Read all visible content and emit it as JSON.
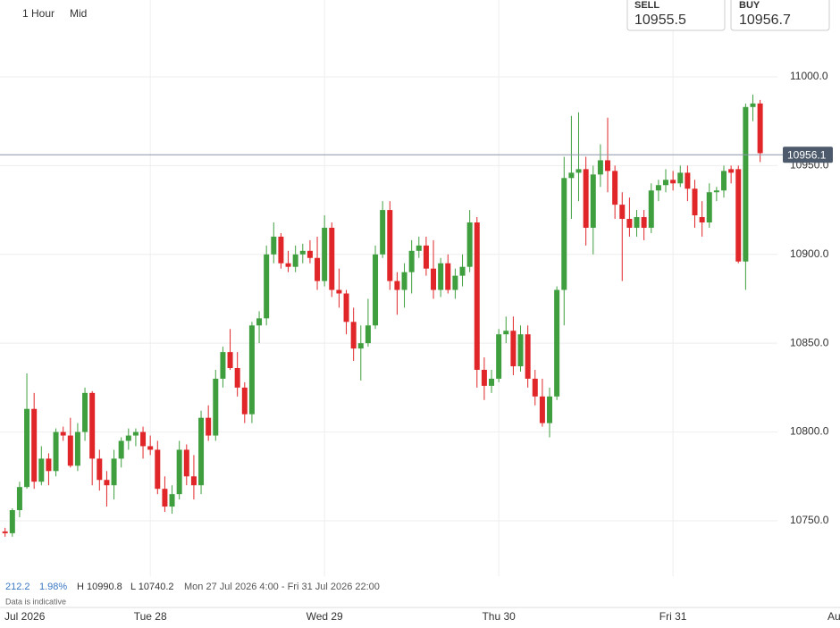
{
  "header": {
    "timeframe": "1 Hour",
    "price_type": "Mid",
    "sell_label": "SELL",
    "sell_price": "10955.5",
    "buy_label": "BUY",
    "buy_price": "10956.7"
  },
  "stats": {
    "change": "212.2",
    "change_pct": "1.98%",
    "high": "H 10990.8",
    "low": "L 10740.2",
    "range": "Mon 27 Jul 2026 4:00 - Fri 31 Jul 2026 22:00",
    "note": "Data is indicative"
  },
  "chart_data": {
    "type": "candlestick",
    "x": [
      4,
      5,
      6,
      7,
      8,
      9,
      10,
      11,
      12,
      13,
      14,
      15,
      16,
      17,
      18,
      19,
      20,
      21,
      22,
      23,
      24,
      25,
      26,
      27,
      28,
      29,
      30,
      31,
      32,
      33,
      34,
      35,
      36,
      37,
      38,
      39,
      40,
      41,
      42,
      43,
      44,
      45,
      46,
      47,
      48,
      49,
      50,
      51,
      52,
      53,
      54,
      55,
      56,
      57,
      58,
      59,
      60,
      61,
      62,
      63,
      64,
      65,
      66,
      67,
      68,
      69,
      70,
      71,
      72,
      73,
      74,
      75,
      76,
      77,
      78,
      79,
      80,
      81,
      82,
      83,
      84,
      85,
      86,
      87,
      88,
      89,
      90,
      91,
      92,
      93,
      94,
      95,
      96,
      97,
      98,
      99,
      100,
      101,
      102,
      103,
      104,
      105,
      106,
      107,
      108
    ],
    "open": [
      10744,
      10743,
      10756,
      10769,
      10813,
      10772,
      10785,
      10778,
      10800,
      10798,
      10781,
      10800,
      10822,
      10785,
      10773,
      10770,
      10785,
      10795,
      10798,
      10800,
      10792,
      10790,
      10768,
      10758,
      10765,
      10790,
      10775,
      10770,
      10808,
      10798,
      10830,
      10845,
      10836,
      10825,
      10810,
      10860,
      10864,
      10900,
      10910,
      10895,
      10893,
      10900,
      10902,
      10898,
      10885,
      10915,
      10880,
      10878,
      10862,
      10847,
      10850,
      10860,
      10900,
      10925,
      10885,
      10880,
      10890,
      10902,
      10905,
      10892,
      10880,
      10895,
      10880,
      10888,
      10893,
      10918,
      10835,
      10826,
      10830,
      10855,
      10857,
      10837,
      10855,
      10830,
      10820,
      10805,
      10820,
      10880,
      10943,
      10946,
      10948,
      10915,
      10945,
      10953,
      10947,
      10928,
      10920,
      10915,
      10921,
      10915,
      10936,
      10939,
      10942,
      10940,
      10946,
      10937,
      10921,
      10918,
      10935,
      10936,
      10948,
      10948,
      10896,
      10983,
      10985
    ],
    "high": [
      10746,
      10757,
      10772,
      10833,
      10822,
      10792,
      10788,
      10802,
      10803,
      10808,
      10805,
      10825,
      10823,
      10790,
      10778,
      10790,
      10797,
      10802,
      10802,
      10803,
      10798,
      10795,
      10775,
      10770,
      10795,
      10793,
      10787,
      10812,
      10815,
      10835,
      10848,
      10858,
      10845,
      10828,
      10862,
      10868,
      10905,
      10918,
      10912,
      10902,
      10905,
      10906,
      10908,
      10910,
      10922,
      10918,
      10892,
      10880,
      10870,
      10860,
      10875,
      10905,
      10930,
      10930,
      10890,
      10895,
      10908,
      10910,
      10910,
      10908,
      10898,
      10900,
      10892,
      10900,
      10925,
      10921,
      10842,
      10835,
      10858,
      10865,
      10865,
      10860,
      10860,
      10835,
      10830,
      10825,
      10882,
      10955,
      10978,
      10980,
      10955,
      10950,
      10962,
      10977,
      10950,
      10935,
      10932,
      10925,
      10925,
      10940,
      10942,
      10948,
      10947,
      10950,
      10950,
      10942,
      10930,
      10940,
      10938,
      10950,
      10950,
      10950,
      10985,
      10990,
      10987
    ],
    "low": [
      10741,
      10741,
      10752,
      10768,
      10768,
      10770,
      10770,
      10775,
      10795,
      10780,
      10778,
      10795,
      10770,
      10767,
      10758,
      10762,
      10780,
      10790,
      10792,
      10785,
      10787,
      10765,
      10755,
      10754,
      10762,
      10770,
      10762,
      10765,
      10795,
      10795,
      10825,
      10835,
      10820,
      10805,
      10805,
      10850,
      10860,
      10895,
      10892,
      10890,
      10890,
      10895,
      10895,
      10880,
      10882,
      10876,
      10870,
      10855,
      10840,
      10829,
      10848,
      10858,
      10898,
      10880,
      10866,
      10870,
      10878,
      10898,
      10888,
      10875,
      10876,
      10878,
      10875,
      10882,
      10890,
      10825,
      10818,
      10822,
      10828,
      10850,
      10832,
      10834,
      10825,
      10815,
      10803,
      10797,
      10818,
      10860,
      10920,
      10930,
      10905,
      10900,
      10938,
      10935,
      10920,
      10885,
      10910,
      10910,
      10908,
      10912,
      10930,
      10935,
      10936,
      10938,
      10930,
      10915,
      10910,
      10915,
      10930,
      10932,
      10940,
      10895,
      10880,
      10975,
      10952
    ],
    "close": [
      10743,
      10756,
      10769,
      10813,
      10772,
      10785,
      10778,
      10800,
      10798,
      10781,
      10800,
      10822,
      10785,
      10773,
      10770,
      10785,
      10795,
      10798,
      10800,
      10792,
      10790,
      10768,
      10758,
      10765,
      10790,
      10775,
      10770,
      10808,
      10798,
      10830,
      10845,
      10836,
      10825,
      10810,
      10860,
      10864,
      10900,
      10910,
      10895,
      10893,
      10900,
      10902,
      10898,
      10885,
      10915,
      10880,
      10878,
      10862,
      10847,
      10850,
      10860,
      10900,
      10925,
      10885,
      10880,
      10890,
      10902,
      10905,
      10892,
      10880,
      10895,
      10880,
      10888,
      10893,
      10918,
      10835,
      10826,
      10830,
      10855,
      10857,
      10837,
      10855,
      10830,
      10820,
      10805,
      10820,
      10880,
      10943,
      10946,
      10948,
      10915,
      10945,
      10953,
      10947,
      10928,
      10920,
      10915,
      10921,
      10915,
      10936,
      10939,
      10942,
      10940,
      10946,
      10937,
      10922,
      10918,
      10935,
      10936,
      10947,
      10946,
      10896,
      10983,
      10985,
      10957
    ],
    "up_color": "#3f9f3f",
    "down_color": "#e02629",
    "xlim": [
      3.3,
      119
    ],
    "xticks": [
      {
        "value": 0,
        "label": "Jul 2026"
      },
      {
        "value": 24,
        "label": "Tue 28"
      },
      {
        "value": 48,
        "label": "Wed 29"
      },
      {
        "value": 72,
        "label": "Thu 30"
      },
      {
        "value": 96,
        "label": "Fri 31"
      },
      {
        "value": 120,
        "label": "Au"
      }
    ],
    "ylim": [
      10720,
      11025
    ],
    "yticks": [
      {
        "value": 10750,
        "label": "10750.0"
      },
      {
        "value": 10800,
        "label": "10800.0"
      },
      {
        "value": 10850,
        "label": "10850.0"
      },
      {
        "value": 10900,
        "label": "10900.0"
      },
      {
        "value": 10950,
        "label": "10950.0"
      },
      {
        "value": 11000,
        "label": "11000.0"
      }
    ],
    "grid": true,
    "current_price": 10956.1
  }
}
